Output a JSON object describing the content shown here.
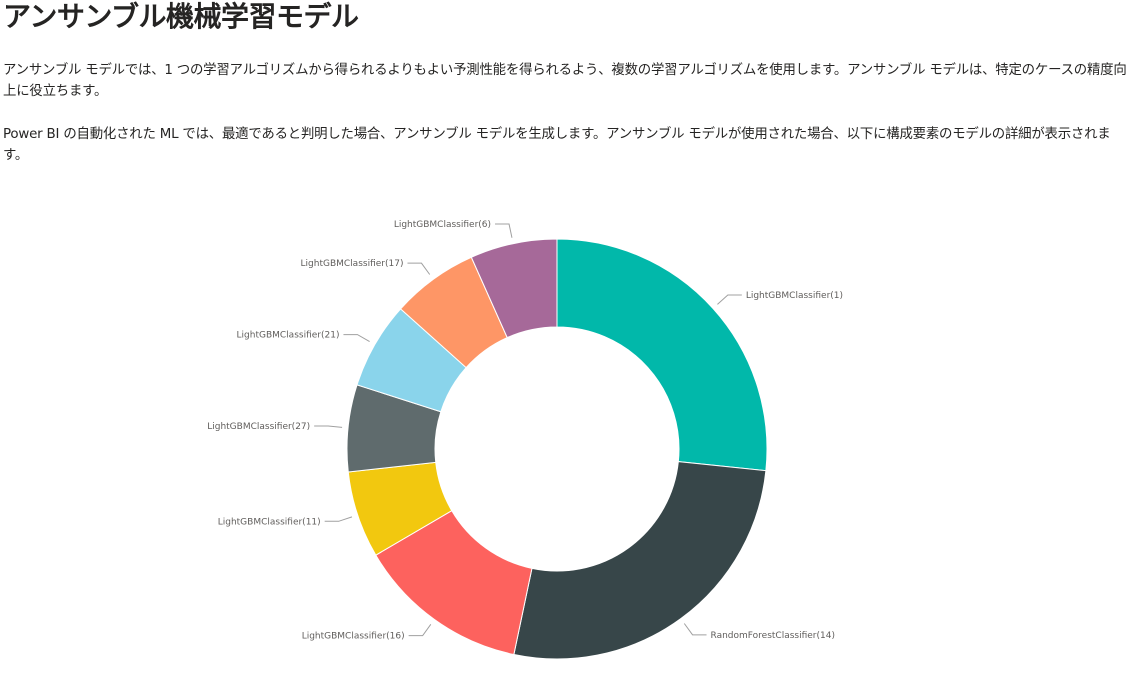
{
  "page": {
    "title": "アンサンブル機械学習モデル",
    "paragraphs": [
      "アンサンブル モデルでは、1 つの学習アルゴリズムから得られるよりもよい予測性能を得られるよう、複数の学習アルゴリズムを使用します。アンサンブル モデルは、特定のケースの精度向上に役立ちます。",
      "Power BI の自動化された ML では、最適であると判明した場合、アンサンブル モデルを生成します。アンサンブル モデルが使用された場合、以下に構成要素のモデルの詳細が表示されます。"
    ]
  },
  "chart_data": {
    "type": "pie",
    "donut": true,
    "title": "",
    "legend": "none",
    "slices": [
      {
        "label": "LightGBMClassifier(1)",
        "value": 26.7,
        "color": "#01B8AA"
      },
      {
        "label": "RandomForestClassifier(14)",
        "value": 26.7,
        "color": "#374649"
      },
      {
        "label": "LightGBMClassifier(16)",
        "value": 13.3,
        "color": "#FD625E"
      },
      {
        "label": "LightGBMClassifier(11)",
        "value": 6.7,
        "color": "#F2C80F"
      },
      {
        "label": "LightGBMClassifier(27)",
        "value": 6.7,
        "color": "#5F6B6D"
      },
      {
        "label": "LightGBMClassifier(21)",
        "value": 6.7,
        "color": "#8AD4EB"
      },
      {
        "label": "LightGBMClassifier(17)",
        "value": 6.7,
        "color": "#FE9666"
      },
      {
        "label": "LightGBMClassifier(6)",
        "value": 6.7,
        "color": "#A66999"
      }
    ]
  }
}
